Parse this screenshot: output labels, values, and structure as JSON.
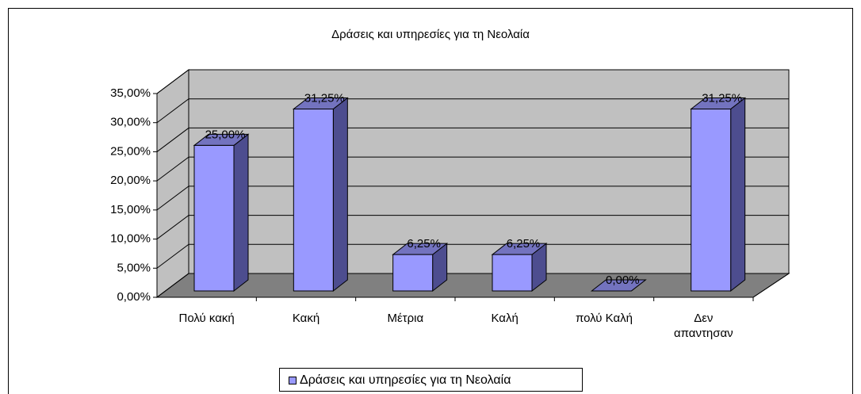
{
  "chart_data": {
    "type": "bar3d",
    "title": "Δράσεις και υπηρεσίες για τη Νεολαία",
    "categories": [
      "Πολύ κακή",
      "Κακή",
      "Μέτρια",
      "Καλή",
      "πολύ Καλή",
      "Δεν απαντησαν"
    ],
    "series": [
      {
        "name": "Δράσεις και υπηρεσίες για τη Νεολαία",
        "color": "#9999ff",
        "values": [
          25,
          31.25,
          6.25,
          6.25,
          0,
          31.25
        ],
        "value_labels": [
          "25,00%",
          "31,25%",
          "6,25%",
          "6,25%",
          "0,00%",
          "31,25%"
        ]
      }
    ],
    "ylim": [
      0,
      35
    ],
    "yticks": [
      {
        "value": 0,
        "label": "0,00%"
      },
      {
        "value": 5,
        "label": "5,00%"
      },
      {
        "value": 10,
        "label": "10,00%"
      },
      {
        "value": 15,
        "label": "15,00%"
      },
      {
        "value": 20,
        "label": "20,00%"
      },
      {
        "value": 25,
        "label": "25,00%"
      },
      {
        "value": 30,
        "label": "30,00%"
      },
      {
        "value": 35,
        "label": "35,00%"
      }
    ],
    "grid": true,
    "legend": "bottom"
  }
}
